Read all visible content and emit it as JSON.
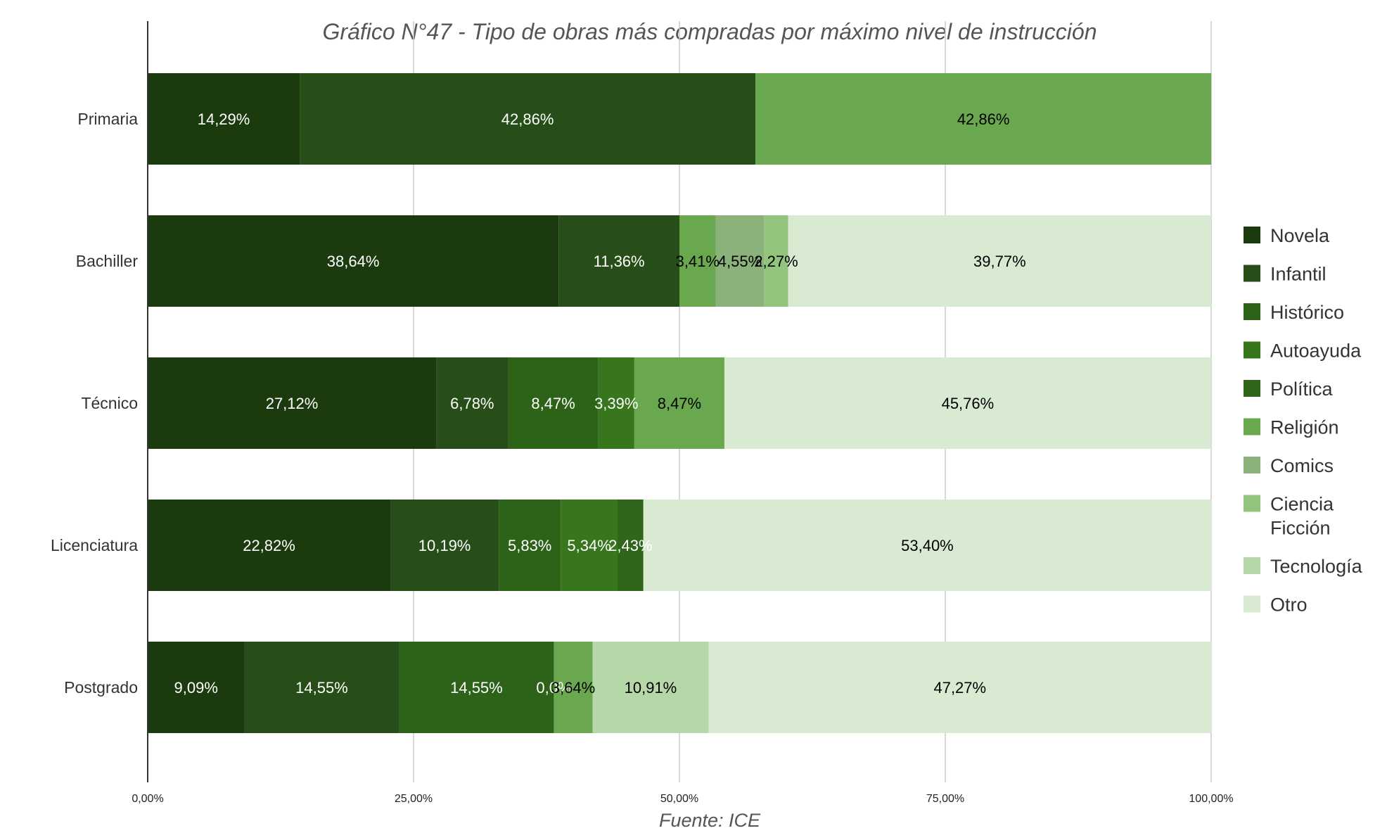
{
  "chart_data": {
    "type": "bar",
    "orientation": "horizontal",
    "stacked": "percent",
    "title": "Gráfico N°47 - Tipo de obras más compradas por máximo nivel de instrucción",
    "source": "Fuente: ICE",
    "categories": [
      "Primaria",
      "Bachiller",
      "Técnico",
      "Licenciatura",
      "Postgrado"
    ],
    "xlim": [
      0,
      100
    ],
    "x_ticks": [
      0,
      25,
      50,
      75,
      100
    ],
    "x_tick_labels": [
      "0,00%",
      "25,00%",
      "50,00%",
      "75,00%",
      "100,00%"
    ],
    "grid": true,
    "legend_position": "right",
    "series": [
      {
        "name": "Novela",
        "color": "#1b3a0e",
        "label_color": "#ffffff",
        "values": [
          14.29,
          38.64,
          27.12,
          22.82,
          9.09
        ],
        "labels": [
          "14,29%",
          "38,64%",
          "27,12%",
          "22,82%",
          "9,09%"
        ]
      },
      {
        "name": "Infantil",
        "color": "#274e18",
        "label_color": "#ffffff",
        "values": [
          42.86,
          11.36,
          6.78,
          10.19,
          14.55
        ],
        "labels": [
          "42,86%",
          "11,36%",
          "6,78%",
          "10,19%",
          "14,55%"
        ]
      },
      {
        "name": "Histórico",
        "color": "#2d6319",
        "label_color": "#ffffff",
        "values": [
          0,
          0,
          8.47,
          5.83,
          14.55
        ],
        "labels": [
          "",
          "",
          "8,47%",
          "5,83%",
          "14,55%"
        ]
      },
      {
        "name": "Autoayuda",
        "color": "#37761d",
        "label_color": "#ffffff",
        "values": [
          0,
          0,
          3.39,
          5.34,
          0
        ],
        "labels": [
          "",
          "",
          "3,39%",
          "5,34%",
          "0,0%"
        ]
      },
      {
        "name": "Política",
        "color": "#30661b",
        "label_color": "#ffffff",
        "values": [
          0,
          0,
          0,
          2.43,
          0
        ],
        "labels": [
          "",
          "",
          "",
          "2,43%",
          ""
        ]
      },
      {
        "name": "Religión",
        "color": "#6aa84f",
        "label_color": "#000000",
        "values": [
          42.86,
          3.41,
          8.47,
          0,
          3.64
        ],
        "labels": [
          "42,86%",
          "3,41%",
          "8,47%",
          "",
          "3,64%"
        ]
      },
      {
        "name": "Comics",
        "color": "#8ab27a",
        "label_color": "#000000",
        "values": [
          0,
          4.55,
          0,
          0,
          0
        ],
        "labels": [
          "",
          "4,55%",
          "",
          "",
          ""
        ]
      },
      {
        "name": "Ciencia Ficción",
        "legend_lines": [
          "Ciencia",
          "Ficción"
        ],
        "color": "#93c47d",
        "label_color": "#000000",
        "values": [
          0,
          2.27,
          0,
          0,
          0
        ],
        "labels": [
          "",
          "2,27%",
          "",
          "",
          ""
        ]
      },
      {
        "name": "Tecnología",
        "color": "#b6d7a8",
        "label_color": "#000000",
        "values": [
          0,
          0,
          0,
          0,
          10.91
        ],
        "labels": [
          "",
          "",
          "",
          "",
          "10,91%"
        ]
      },
      {
        "name": "Otro",
        "color": "#d9ead3",
        "label_color": "#000000",
        "values": [
          0,
          39.77,
          45.76,
          53.4,
          47.27
        ],
        "labels": [
          "",
          "39,77%",
          "45,76%",
          "53,40%",
          "47,27%"
        ]
      }
    ]
  }
}
